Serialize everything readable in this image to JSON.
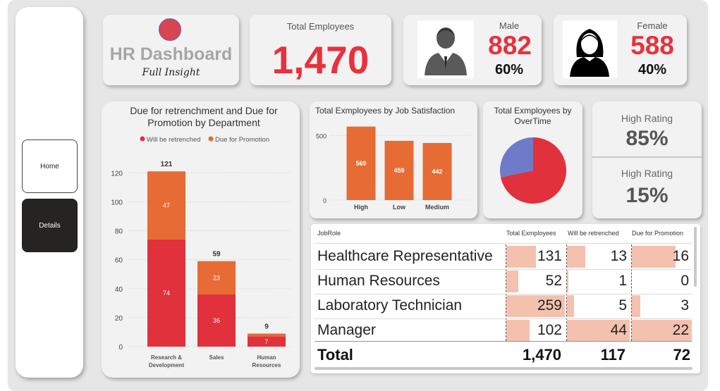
{
  "nav": {
    "home_label": "Home",
    "details_label": "Details"
  },
  "header": {
    "title": "HR Dashboard",
    "subtitle": "Full Insight"
  },
  "kpis": {
    "total_label": "Total Employees",
    "total_value": "1,470",
    "male_label": "Male",
    "male_value": "882",
    "male_pct": "60%",
    "female_label": "Female",
    "female_value": "588",
    "female_pct": "40%"
  },
  "colors": {
    "red": "#e0313c",
    "orange": "#e66b35",
    "blue": "#6f7bc9",
    "databar": "#f4c1ae"
  },
  "rating": {
    "label1": "High Rating",
    "value1": "85%",
    "label2": "High Rating",
    "value2": "15%"
  },
  "dept_chart": {
    "title": "Due for retrenchment and Due for Promotion by Department",
    "legend": [
      "Will be retrenched",
      "Due for Promotion"
    ]
  },
  "jobsat_chart": {
    "title": "Total Exmployees by Job Satisfaction"
  },
  "overtime_chart": {
    "title": "Total Exmployees by OverTime"
  },
  "chart_data": [
    {
      "type": "bar",
      "stacked": true,
      "title": "Due for retrenchment and Due for Promotion by Department",
      "categories": [
        "Research & Development",
        "Sales",
        "Human Resources"
      ],
      "series": [
        {
          "name": "Will be retrenched",
          "values": [
            74,
            36,
            7
          ]
        },
        {
          "name": "Due for Promotion",
          "values": [
            47,
            23,
            2
          ]
        }
      ],
      "totals": [
        "121",
        "59",
        "9"
      ],
      "yticks": [
        "0",
        "20",
        "40",
        "60",
        "80",
        "100",
        "120"
      ],
      "ylim": [
        0,
        125
      ],
      "legend_position": "top"
    },
    {
      "type": "bar",
      "title": "Total Exmployees by Job Satisfaction",
      "categories": [
        "High",
        "Low",
        "Medium"
      ],
      "values": [
        569,
        459,
        442
      ],
      "yticks": [
        "0",
        "500"
      ],
      "ylim": [
        0,
        600
      ]
    },
    {
      "type": "pie",
      "title": "Total Exmployees by OverTime",
      "values": [
        1054,
        416
      ]
    }
  ],
  "table": {
    "headers": [
      "JobRole",
      "Total Exmployees",
      "Will be retrenched",
      "Due for Promotion"
    ],
    "rows": [
      {
        "role": "Healthcare Representative",
        "total": "131",
        "retrenched": "13",
        "promotion": "16"
      },
      {
        "role": "Human Resources",
        "total": "52",
        "retrenched": "1",
        "promotion": "0"
      },
      {
        "role": "Laboratory Technician",
        "total": "259",
        "retrenched": "5",
        "promotion": "3"
      },
      {
        "role": "Manager",
        "total": "102",
        "retrenched": "44",
        "promotion": "22"
      }
    ],
    "total_label": "Total",
    "total_total": "1,470",
    "total_retrenched": "117",
    "total_promotion": "72"
  }
}
